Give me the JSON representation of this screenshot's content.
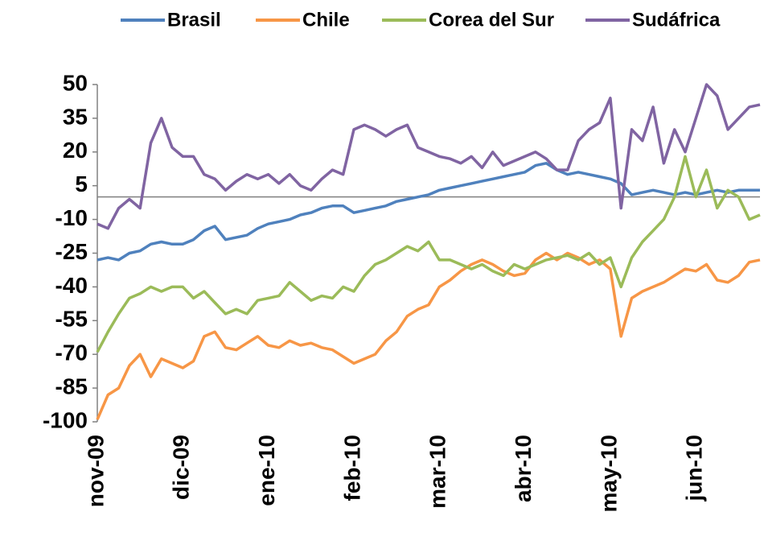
{
  "chart_data": {
    "type": "line",
    "categories": [
      "nov-09",
      null,
      null,
      null,
      null,
      null,
      null,
      null,
      "dic-09",
      null,
      null,
      null,
      null,
      null,
      null,
      null,
      "ene-10",
      null,
      null,
      null,
      null,
      null,
      null,
      null,
      "feb-10",
      null,
      null,
      null,
      null,
      null,
      null,
      null,
      "mar-10",
      null,
      null,
      null,
      null,
      null,
      null,
      null,
      "abr-10",
      null,
      null,
      null,
      null,
      null,
      null,
      null,
      "may-10",
      null,
      null,
      null,
      null,
      null,
      null,
      null,
      "jun-10",
      null,
      null,
      null,
      null,
      null,
      null
    ],
    "series": [
      {
        "name": "Brasil",
        "color": "#4f81bd",
        "values": [
          -28,
          -27,
          -28,
          -25,
          -24,
          -21,
          -20,
          -21,
          -21,
          -19,
          -15,
          -13,
          -19,
          -18,
          -17,
          -14,
          -12,
          -11,
          -10,
          -8,
          -7,
          -5,
          -4,
          -4,
          -7,
          -6,
          -5,
          -4,
          -2,
          -1,
          0,
          1,
          3,
          4,
          5,
          6,
          7,
          8,
          9,
          10,
          11,
          14,
          15,
          12,
          10,
          11,
          10,
          9,
          8,
          6,
          1,
          2,
          3,
          2,
          1,
          2,
          1,
          2,
          3,
          2,
          3,
          3,
          3
        ]
      },
      {
        "name": "Chile",
        "color": "#f79646",
        "values": [
          -99,
          -88,
          -85,
          -75,
          -70,
          -80,
          -72,
          -74,
          -76,
          -73,
          -62,
          -60,
          -67,
          -68,
          -65,
          -62,
          -66,
          -67,
          -64,
          -66,
          -65,
          -67,
          -68,
          -71,
          -74,
          -72,
          -70,
          -64,
          -60,
          -53,
          -50,
          -48,
          -40,
          -37,
          -33,
          -30,
          -28,
          -30,
          -33,
          -35,
          -34,
          -28,
          -25,
          -28,
          -25,
          -27,
          -30,
          -28,
          -32,
          -62,
          -45,
          -42,
          -40,
          -38,
          -35,
          -32,
          -33,
          -30,
          -37,
          -38,
          -35,
          -29,
          -28
        ]
      },
      {
        "name": "Corea del Sur",
        "color": "#9bbb59",
        "values": [
          -69,
          -60,
          -52,
          -45,
          -43,
          -40,
          -42,
          -40,
          -40,
          -45,
          -42,
          -47,
          -52,
          -50,
          -52,
          -46,
          -45,
          -44,
          -38,
          -42,
          -46,
          -44,
          -45,
          -40,
          -42,
          -35,
          -30,
          -28,
          -25,
          -22,
          -24,
          -20,
          -28,
          -28,
          -30,
          -32,
          -30,
          -33,
          -35,
          -30,
          -32,
          -30,
          -28,
          -27,
          -26,
          -28,
          -25,
          -30,
          -27,
          -40,
          -27,
          -20,
          -15,
          -10,
          0,
          18,
          0,
          12,
          -5,
          3,
          0,
          -10,
          -8
        ]
      },
      {
        "name": "Sudáfrica",
        "color": "#8064a2",
        "values": [
          -12,
          -14,
          -5,
          -1,
          -5,
          24,
          35,
          22,
          18,
          18,
          10,
          8,
          3,
          7,
          10,
          8,
          10,
          6,
          10,
          5,
          3,
          8,
          12,
          10,
          30,
          32,
          30,
          27,
          30,
          32,
          22,
          20,
          18,
          17,
          15,
          18,
          13,
          20,
          14,
          16,
          18,
          20,
          17,
          12,
          12,
          25,
          30,
          33,
          44,
          -5,
          30,
          25,
          40,
          15,
          30,
          20,
          35,
          50,
          45,
          30,
          35,
          40,
          41
        ]
      }
    ],
    "ylim": [
      -100,
      50
    ],
    "yticks": [
      50,
      35,
      20,
      5,
      -10,
      -25,
      -40,
      -55,
      -70,
      -85,
      -100
    ]
  }
}
